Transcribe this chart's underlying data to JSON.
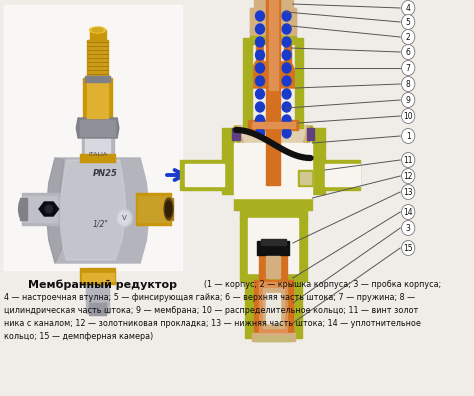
{
  "title": "Мембранный редуктор",
  "background_color": "#f0ede8",
  "legend_line1": "(1 — корпус; 2 — крышка корпуса; 3 — пробка корпуса;",
  "legend_line2": "4 — настроечная втулна; 5 — финсирующая гайка; 6 — верхняя часть штока; 7 — пружина; 8 —",
  "legend_line3": "цилиндрическая часть штока; 9 — мембрана; 10 — распределительное кольцо; 11 — винт золот",
  "legend_line4": "ника с каналом; 12 — золотниковая прокладка; 13 — нижняя часть штока; 14 — уплотнительное",
  "legend_line5": "кольцо; 15 — демпферная камера)",
  "annot_numbers": [
    4,
    5,
    2,
    6,
    7,
    8,
    9,
    10,
    1,
    11,
    12,
    13,
    14,
    3,
    15
  ],
  "brass": "#c8960a",
  "silver": "#b4b4bc",
  "dark_silver": "#808088",
  "light_silver": "#d8d8e0",
  "orange_c": "#d47020",
  "light_orange": "#e09050",
  "tan_c": "#d4b080",
  "yellow_green": "#a8b020",
  "olive_c": "#787010",
  "blue_dot": "#1a3acc",
  "black_c": "#101010",
  "dark_gray": "#2a2a2a",
  "white_c": "#f8f5f0",
  "purple_c": "#604080",
  "arrow_blue": "#1a3acc"
}
